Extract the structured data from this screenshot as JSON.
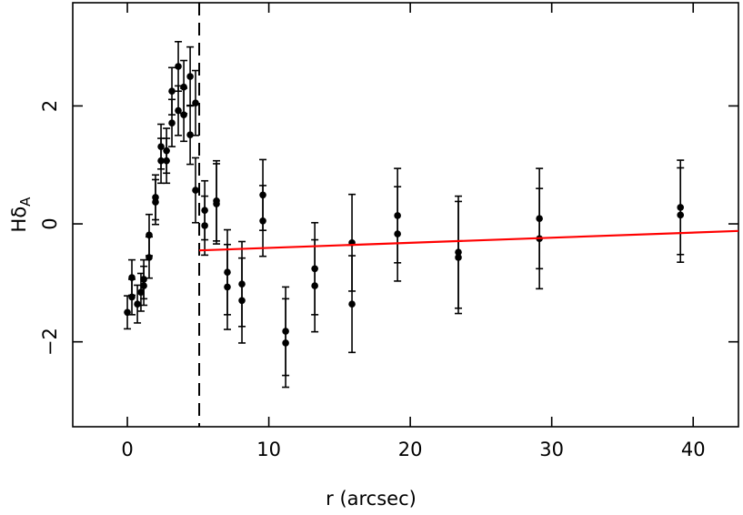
{
  "chart_data": {
    "type": "scatter",
    "xlabel": "r (arcsec)",
    "ylabel": "Hδ",
    "ylabel_sub": "A",
    "xlim": [
      -3.86,
      43.2
    ],
    "ylim": [
      -3.44,
      3.75
    ],
    "xticks": [
      0,
      10,
      20,
      30,
      40
    ],
    "yticks": [
      {
        "value": -2,
        "label": "−2"
      },
      0,
      2
    ],
    "vline": 5.08,
    "fit": {
      "x": [
        5.08,
        43.2
      ],
      "y": [
        -0.45,
        -0.12
      ],
      "color": "#ff0000"
    },
    "series": [
      {
        "color": "#000000",
        "x": [
          0,
          0.32,
          0.32,
          0.71,
          0.96,
          1.16,
          1.16,
          1.54,
          1.54,
          1.99,
          1.99,
          2.38,
          2.38,
          2.77,
          2.77,
          3.15,
          3.15,
          3.6,
          3.6,
          3.99,
          3.99,
          4.44,
          4.44,
          4.82,
          4.82,
          5.47,
          5.47,
          6.3,
          6.3,
          7.07,
          7.07,
          8.1,
          8.1,
          9.58,
          9.58,
          11.19,
          11.19,
          13.25,
          13.25,
          15.88,
          15.88,
          19.1,
          19.1,
          23.4,
          23.4,
          29.13,
          29.13,
          39.1,
          39.1
        ],
        "values": [
          -1.5,
          -0.91,
          -1.24,
          -1.36,
          -1.16,
          -0.94,
          -1.05,
          -0.19,
          -0.57,
          0.45,
          0.37,
          1.31,
          1.07,
          1.24,
          1.07,
          2.25,
          1.71,
          2.67,
          1.92,
          2.32,
          1.85,
          2.5,
          1.51,
          2.05,
          0.57,
          0.23,
          -0.03,
          0.39,
          0.34,
          -0.82,
          -1.07,
          -1.02,
          -1.3,
          0.49,
          0.05,
          -1.82,
          -2.02,
          -0.76,
          -1.05,
          -0.32,
          -1.36,
          0.14,
          -0.17,
          -0.48,
          -0.57,
          0.09,
          -0.25,
          0.28,
          0.15
        ],
        "errors": [
          0.28,
          0.3,
          0.3,
          0.32,
          0.32,
          0.33,
          0.33,
          0.35,
          0.35,
          0.38,
          0.38,
          0.38,
          0.38,
          0.38,
          0.38,
          0.4,
          0.4,
          0.42,
          0.42,
          0.45,
          0.45,
          0.5,
          0.5,
          0.55,
          0.55,
          0.5,
          0.5,
          0.68,
          0.68,
          0.72,
          0.72,
          0.72,
          0.72,
          0.6,
          0.6,
          0.75,
          0.75,
          0.78,
          0.78,
          0.82,
          0.82,
          0.8,
          0.8,
          0.95,
          0.95,
          0.85,
          0.85,
          0.8,
          0.8
        ]
      }
    ]
  }
}
